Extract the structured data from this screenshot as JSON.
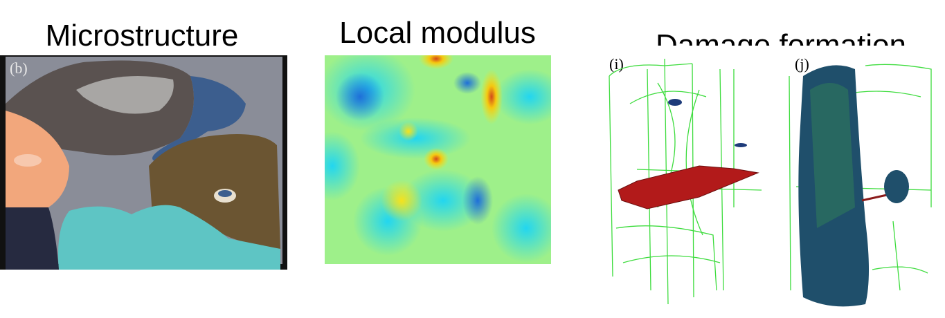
{
  "panels": [
    {
      "title": "Microstructure",
      "label": "(b)"
    },
    {
      "title": "Local modulus"
    },
    {
      "title": "Damage formation",
      "labels": [
        "(i)",
        "(j)"
      ]
    }
  ]
}
